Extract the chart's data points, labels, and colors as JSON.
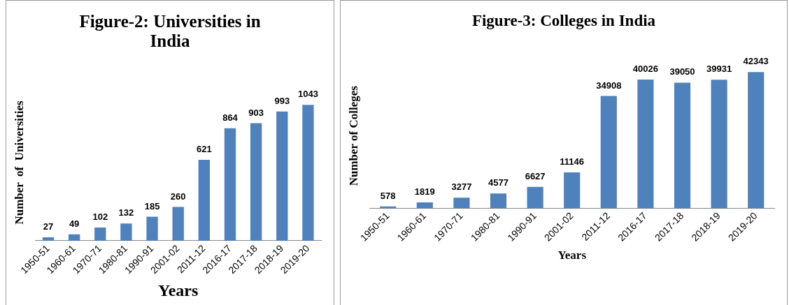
{
  "chart_data": [
    {
      "type": "bar",
      "title": "Figure-2: Universities in India",
      "xlabel": "Years",
      "ylabel": "Number  of  Universities",
      "categories": [
        "1950-51",
        "1960-61",
        "1970-71",
        "1980-81",
        "1990-91",
        "2001-02",
        "2011-12",
        "2016-17",
        "2017-18",
        "2018-19",
        "2019-20"
      ],
      "values": [
        27,
        49,
        102,
        132,
        185,
        260,
        621,
        864,
        903,
        993,
        1043
      ],
      "color": "#4f81bd",
      "data_labels": true,
      "grid": false,
      "legend": false,
      "tick_labels": "x"
    },
    {
      "type": "bar",
      "title": "Figure-3: Colleges in India",
      "xlabel": "Years",
      "ylabel": "Number of Colleges",
      "categories": [
        "1950-51",
        "1960-61",
        "1970-71",
        "1980-81",
        "1990-91",
        "2001-02",
        "2011-12",
        "2016-17",
        "2017-18",
        "2018-19",
        "2019-20"
      ],
      "values": [
        578,
        1819,
        3277,
        4577,
        6627,
        11146,
        34908,
        40026,
        39050,
        39931,
        42343
      ],
      "color": "#4f81bd",
      "data_labels": true,
      "grid": false,
      "legend": false,
      "tick_labels": "x"
    }
  ]
}
